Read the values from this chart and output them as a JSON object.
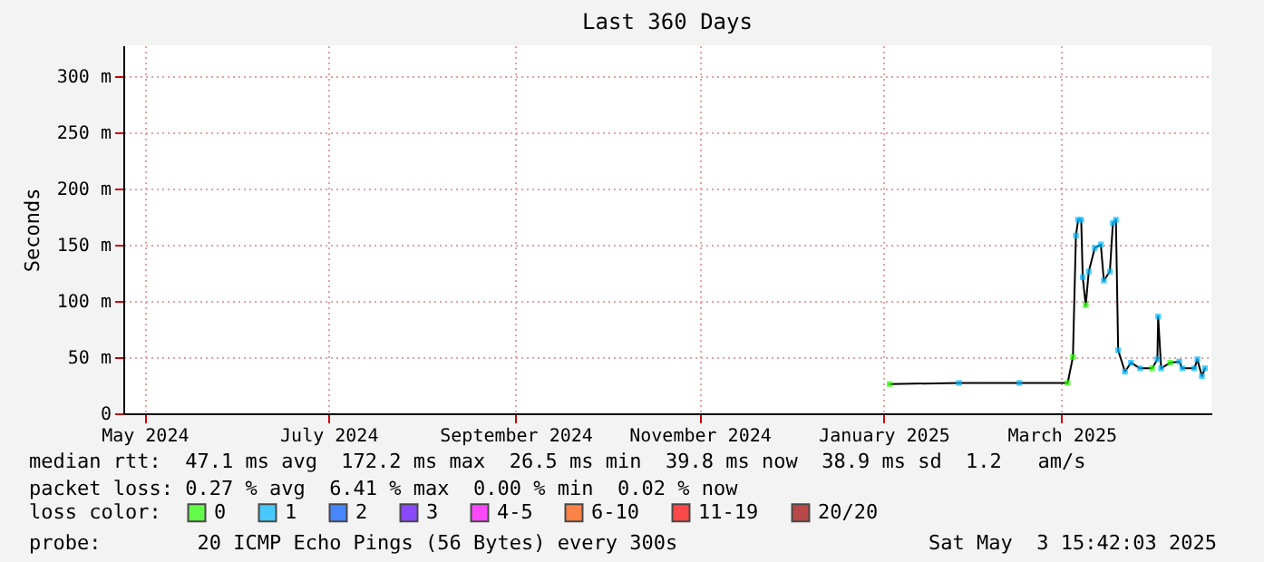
{
  "chart_data": {
    "type": "line",
    "title": "Last 360 Days",
    "ylabel": "Seconds",
    "x": [
      "2025-01-17",
      "2025-02-09",
      "2025-03-01",
      "2025-03-17",
      "2025-03-18T18:00",
      "2025-03-19T18:00",
      "2025-03-20T12:00",
      "2025-03-21T12:00",
      "2025-03-22",
      "2025-03-23",
      "2025-03-24",
      "2025-03-26",
      "2025-03-28",
      "2025-03-29",
      "2025-03-31",
      "2025-04-01",
      "2025-04-02",
      "2025-04-02T18:00",
      "2025-04-05",
      "2025-04-07",
      "2025-04-10",
      "2025-04-14",
      "2025-04-15T18:00",
      "2025-04-16",
      "2025-04-17",
      "2025-04-20",
      "2025-04-23",
      "2025-04-24",
      "2025-04-28",
      "2025-04-29",
      "2025-04-30T12:00",
      "2025-05-01T12:00"
    ],
    "series": [
      {
        "color": "#000000",
        "values": [
          26,
          27,
          27,
          27,
          50,
          158,
          172,
          172,
          121,
          96,
          126,
          147,
          150,
          118,
          126,
          169,
          172,
          56,
          37,
          45,
          40,
          40,
          48,
          86,
          40,
          45,
          46,
          40,
          40,
          48,
          33,
          40
        ]
      },
      {
        "type": "scatter",
        "name": "0",
        "color": "#26ff00",
        "marker": "square",
        "values": [
          26,
          null,
          null,
          27,
          50,
          null,
          null,
          null,
          null,
          96,
          null,
          null,
          null,
          null,
          null,
          null,
          null,
          null,
          null,
          null,
          null,
          40,
          null,
          null,
          null,
          45,
          null,
          null,
          null,
          null,
          null,
          null
        ]
      },
      {
        "type": "scatter",
        "name": "1",
        "color": "#00b8ff",
        "marker": "square",
        "values": [
          null,
          27,
          27,
          null,
          null,
          158,
          172,
          172,
          121,
          null,
          126,
          147,
          150,
          118,
          126,
          169,
          172,
          56,
          37,
          45,
          40,
          null,
          48,
          86,
          40,
          null,
          46,
          40,
          40,
          48,
          33,
          40
        ]
      },
      {
        "type": "scatter",
        "name": "2",
        "color": "#0059ff",
        "marker": "square",
        "values": [
          null,
          null,
          null,
          null,
          null,
          null,
          null,
          null,
          null,
          null,
          null,
          null,
          null,
          null,
          null,
          null,
          null,
          null,
          null,
          null,
          null,
          null,
          null,
          null,
          null,
          null,
          null,
          null,
          null,
          null,
          null,
          null
        ]
      },
      {
        "type": "scatter",
        "name": "3",
        "color": "#5e00ff",
        "marker": "square",
        "values": [
          null,
          null,
          null,
          null,
          null,
          null,
          null,
          null,
          null,
          null,
          null,
          null,
          null,
          null,
          null,
          null,
          null,
          null,
          null,
          null,
          null,
          null,
          null,
          null,
          null,
          null,
          null,
          null,
          null,
          null,
          null,
          null
        ]
      },
      {
        "type": "scatter",
        "name": "4-5",
        "color": "#ff00ff",
        "marker": "square",
        "values": [
          null,
          null,
          null,
          null,
          null,
          null,
          null,
          null,
          null,
          null,
          null,
          null,
          null,
          null,
          null,
          null,
          null,
          null,
          null,
          null,
          null,
          null,
          null,
          null,
          null,
          null,
          null,
          null,
          null,
          null,
          null,
          null
        ]
      },
      {
        "type": "scatter",
        "name": "6-10",
        "color": "#ff5500",
        "marker": "square",
        "values": [
          null,
          null,
          null,
          null,
          null,
          null,
          null,
          null,
          null,
          null,
          null,
          null,
          null,
          null,
          null,
          null,
          null,
          null,
          null,
          null,
          null,
          null,
          null,
          null,
          null,
          null,
          null,
          null,
          null,
          null,
          null,
          null
        ]
      },
      {
        "type": "scatter",
        "name": "11-19",
        "color": "#ff0000",
        "marker": "square",
        "values": [
          null,
          null,
          null,
          null,
          null,
          null,
          null,
          null,
          null,
          null,
          null,
          null,
          null,
          null,
          null,
          null,
          null,
          null,
          null,
          null,
          null,
          null,
          null,
          null,
          null,
          null,
          null,
          null,
          null,
          null,
          null,
          null
        ]
      },
      {
        "type": "scatter",
        "name": "20/20",
        "color": "#a10000",
        "marker": "square",
        "values": [
          null,
          null,
          null,
          null,
          null,
          null,
          null,
          null,
          null,
          null,
          null,
          null,
          null,
          null,
          null,
          null,
          null,
          null,
          null,
          null,
          null,
          null,
          null,
          null,
          null,
          null,
          null,
          null,
          null,
          null,
          null,
          null
        ]
      }
    ],
    "xlim": [
      "2024-05-08",
      "2025-05-03T15:42"
    ],
    "xticks": [
      {
        "value": "2024-05-15",
        "label": "May 2024"
      },
      {
        "value": "2024-07-15",
        "label": "July 2024"
      },
      {
        "value": "2024-09-15",
        "label": "September 2024"
      },
      {
        "value": "2024-11-15",
        "label": "November 2024"
      },
      {
        "value": "2025-01-15",
        "label": "January 2025"
      },
      {
        "value": "2025-03-15",
        "label": "March 2025"
      }
    ],
    "ylim": [
      0,
      327
    ],
    "yticks": [
      0,
      {
        "value": 50,
        "label": "50 m"
      },
      {
        "value": 100,
        "label": "100 m"
      },
      {
        "value": 150,
        "label": "150 m"
      },
      {
        "value": 200,
        "label": "200 m"
      },
      {
        "value": 250,
        "label": "250 m"
      },
      {
        "value": 300,
        "label": "300 m"
      }
    ],
    "grid": true,
    "legend": "bottom left",
    "legend_title": "loss color:",
    "annotations": [
      "median rtt:  47.1 ms avg  172.2 ms max  26.5 ms min  39.8 ms now  38.9 ms sd  1.2   am/s",
      "packet loss: 0.27 % avg  6.41 % max  0.00 % min  0.02 % now",
      "probe:        20 ICMP Echo Pings (56 Bytes) every 300s",
      "Sat May  3 15:42:03 2025"
    ]
  }
}
